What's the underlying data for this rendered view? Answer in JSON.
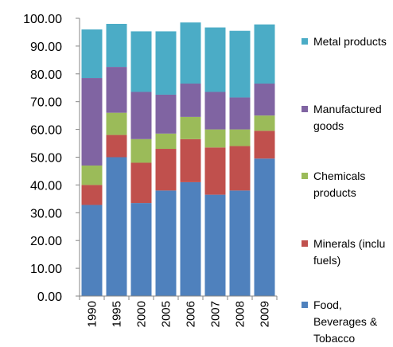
{
  "chart_data": {
    "type": "stacked-bar",
    "categories": [
      "1990",
      "1995",
      "2000",
      "2005",
      "2006",
      "2007",
      "2008",
      "2009"
    ],
    "series": [
      {
        "name": "Food, Beverages & Tobacco",
        "color": "#4f81bd",
        "values": [
          32.8,
          50,
          33.5,
          38,
          41,
          36.5,
          38,
          49.5
        ]
      },
      {
        "name": "Minerals (inclu fuels)",
        "color": "#c0504d",
        "values": [
          7.2,
          8,
          14.5,
          15,
          15.5,
          17,
          16,
          10
        ]
      },
      {
        "name": "Chemicals products",
        "color": "#9bbb59",
        "values": [
          7,
          8,
          8.5,
          5.5,
          8,
          6.5,
          6,
          5.5
        ]
      },
      {
        "name": "Manufactured goods",
        "color": "#8064a2",
        "values": [
          31.5,
          16.5,
          17,
          14,
          12,
          13.5,
          11.5,
          11.5
        ]
      },
      {
        "name": "Metal products",
        "color": "#4bacc6",
        "values": [
          17.5,
          15.5,
          21.8,
          22.8,
          22,
          23.2,
          24,
          21.3
        ]
      }
    ],
    "ylim": [
      0,
      100
    ],
    "yticks": [
      {
        "value": 0,
        "label": "0.00"
      },
      {
        "value": 10,
        "label": "10.00"
      },
      {
        "value": 20,
        "label": "20.00"
      },
      {
        "value": 30,
        "label": "30.00"
      },
      {
        "value": 40,
        "label": "40.00"
      },
      {
        "value": 50,
        "label": "50.00"
      },
      {
        "value": 60,
        "label": "60.00"
      },
      {
        "value": 70,
        "label": "70.00"
      },
      {
        "value": 80,
        "label": "80.00"
      },
      {
        "value": 90,
        "label": "90.00"
      },
      {
        "value": 100,
        "label": "100.00"
      }
    ],
    "legend": "right"
  }
}
